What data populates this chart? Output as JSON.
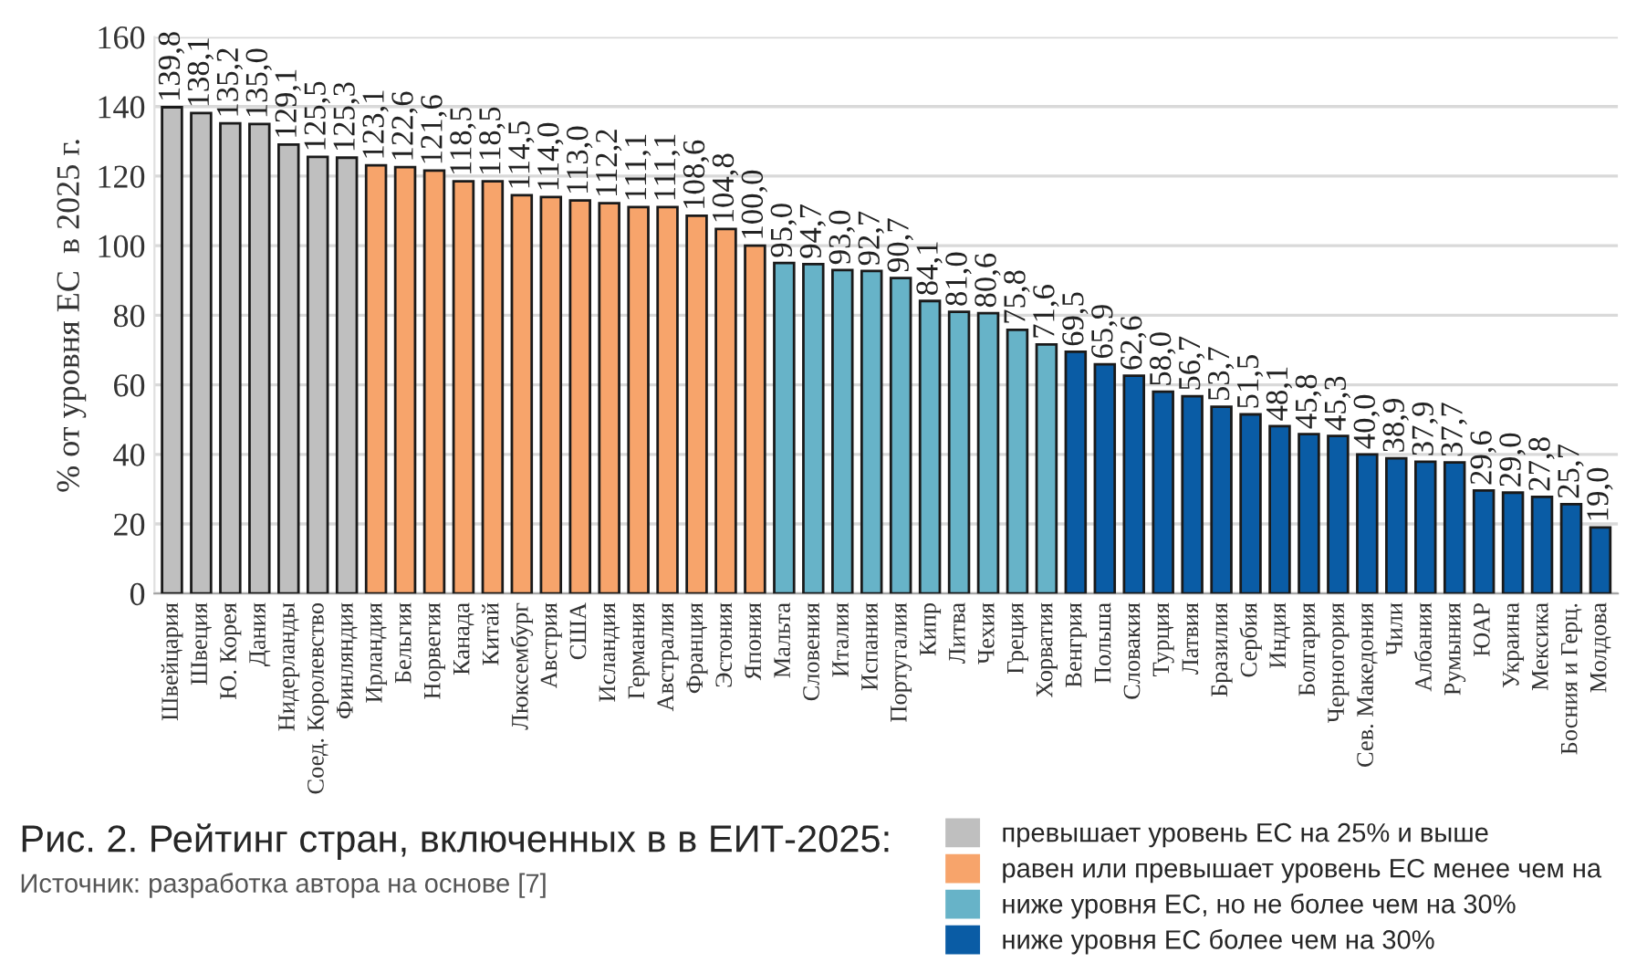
{
  "chart_data": {
    "type": "bar",
    "title": "Рис. 2. Рейтинг стран, включенных в в ЕИТ-2025:",
    "ylabel": "% от уровня ЕС  в 2025 г.",
    "annotations": [
      "Источник: разработка автора на основе [7]"
    ],
    "categories": [
      "Швейцария",
      "Швеция",
      "Ю. Корея",
      "Дания",
      "Нидерланды",
      "Соед. Королевство",
      "Финляндия",
      "Ирландия",
      "Бельгия",
      "Норвегия",
      "Канада",
      "Китай",
      "Люксембург",
      "Австрия",
      "США",
      "Исландия",
      "Германия",
      "Австралия",
      "Франция",
      "Эстония",
      "Япония",
      "Мальта",
      "Словения",
      "Италия",
      "Испания",
      "Португалия",
      "Кипр",
      "Литва",
      "Чехия",
      "Греция",
      "Хорватия",
      "Венгрия",
      "Польша",
      "Словакия",
      "Турция",
      "Латвия",
      "Бразилия",
      "Сербия",
      "Индия",
      "Болгария",
      "Черногория",
      "Сев. Македония",
      "Чили",
      "Албания",
      "Румыния",
      "ЮАР",
      "Украина",
      "Мексика",
      "Босния и Герц.",
      "Молдова"
    ],
    "series": [
      {
        "name": "превышает уровень ЕС на 25% и выше",
        "color": "#bfbfbf",
        "values": [
          139.8,
          138.1,
          135.2,
          135.0,
          129.1,
          125.5,
          125.3,
          null,
          null,
          null,
          null,
          null,
          null,
          null,
          null,
          null,
          null,
          null,
          null,
          null,
          null,
          null,
          null,
          null,
          null,
          null,
          null,
          null,
          null,
          null,
          null,
          null,
          null,
          null,
          null,
          null,
          null,
          null,
          null,
          null,
          null,
          null,
          null,
          null,
          null,
          null,
          null,
          null,
          null,
          null
        ],
        "value_labels": [
          "139,8",
          "138,1",
          "135,2",
          "135,0",
          "129,1",
          "125,5",
          "125,3",
          null,
          null,
          null,
          null,
          null,
          null,
          null,
          null,
          null,
          null,
          null,
          null,
          null,
          null,
          null,
          null,
          null,
          null,
          null,
          null,
          null,
          null,
          null,
          null,
          null,
          null,
          null,
          null,
          null,
          null,
          null,
          null,
          null,
          null,
          null,
          null,
          null,
          null,
          null,
          null,
          null,
          null,
          null
        ]
      },
      {
        "name": "равен или превышает уровень ЕС менее чем на",
        "color": "#f7a46b",
        "values": [
          null,
          null,
          null,
          null,
          null,
          null,
          null,
          123.1,
          122.6,
          121.6,
          118.5,
          118.5,
          114.5,
          114.0,
          113.0,
          112.2,
          111.1,
          111.1,
          108.6,
          104.8,
          100.0,
          null,
          null,
          null,
          null,
          null,
          null,
          null,
          null,
          null,
          null,
          null,
          null,
          null,
          null,
          null,
          null,
          null,
          null,
          null,
          null,
          null,
          null,
          null,
          null,
          null,
          null,
          null,
          null,
          null
        ],
        "value_labels": [
          null,
          null,
          null,
          null,
          null,
          null,
          null,
          "123,1",
          "122,6",
          "121,6",
          "118,5",
          "118,5",
          "114,5",
          "114,0",
          "113,0",
          "112,2",
          "111,1",
          "111,1",
          "108,6",
          "104,8",
          "100,0",
          null,
          null,
          null,
          null,
          null,
          null,
          null,
          null,
          null,
          null,
          null,
          null,
          null,
          null,
          null,
          null,
          null,
          null,
          null,
          null,
          null,
          null,
          null,
          null,
          null,
          null,
          null,
          null,
          null
        ]
      },
      {
        "name": "ниже уровня ЕС, но не более чем на 30%",
        "color": "#67b3c8",
        "values": [
          null,
          null,
          null,
          null,
          null,
          null,
          null,
          null,
          null,
          null,
          null,
          null,
          null,
          null,
          null,
          null,
          null,
          null,
          null,
          null,
          null,
          95.0,
          94.7,
          93.0,
          92.7,
          90.7,
          84.1,
          81.0,
          80.6,
          75.8,
          71.6,
          null,
          null,
          null,
          null,
          null,
          null,
          null,
          null,
          null,
          null,
          null,
          null,
          null,
          null,
          null,
          null,
          null,
          null,
          null
        ],
        "value_labels": [
          null,
          null,
          null,
          null,
          null,
          null,
          null,
          null,
          null,
          null,
          null,
          null,
          null,
          null,
          null,
          null,
          null,
          null,
          null,
          null,
          null,
          "95,0",
          "94,7",
          "93,0",
          "92,7",
          "90,7",
          "84,1",
          "81,0",
          "80,6",
          "75,8",
          "71,6",
          null,
          null,
          null,
          null,
          null,
          null,
          null,
          null,
          null,
          null,
          null,
          null,
          null,
          null,
          null,
          null,
          null,
          null,
          null
        ]
      },
      {
        "name": "ниже уровня ЕС более чем на 30%",
        "color": "#0a5ca5",
        "values": [
          null,
          null,
          null,
          null,
          null,
          null,
          null,
          null,
          null,
          null,
          null,
          null,
          null,
          null,
          null,
          null,
          null,
          null,
          null,
          null,
          null,
          null,
          null,
          null,
          null,
          null,
          null,
          null,
          null,
          null,
          null,
          69.5,
          65.9,
          62.6,
          58.0,
          56.7,
          53.7,
          51.5,
          48.1,
          45.8,
          45.3,
          40.0,
          38.9,
          37.9,
          37.7,
          29.6,
          29.0,
          27.8,
          25.7,
          19.0
        ],
        "value_labels": [
          null,
          null,
          null,
          null,
          null,
          null,
          null,
          null,
          null,
          null,
          null,
          null,
          null,
          null,
          null,
          null,
          null,
          null,
          null,
          null,
          null,
          null,
          null,
          null,
          null,
          null,
          null,
          null,
          null,
          null,
          null,
          "69,5",
          "65,9",
          "62,6",
          "58,0",
          "56,7",
          "53,7",
          "51,5",
          "48,1",
          "45,8",
          "45,3",
          "40,0",
          "38,9",
          "37,9",
          "37,7",
          "29,6",
          "29,0",
          "27,8",
          "25,7",
          "19,0"
        ]
      }
    ],
    "ylim": [
      0,
      160
    ],
    "yticks": [
      0,
      20,
      40,
      60,
      80,
      100,
      120,
      140,
      160
    ],
    "grid": "y",
    "legend": "bottom right"
  }
}
